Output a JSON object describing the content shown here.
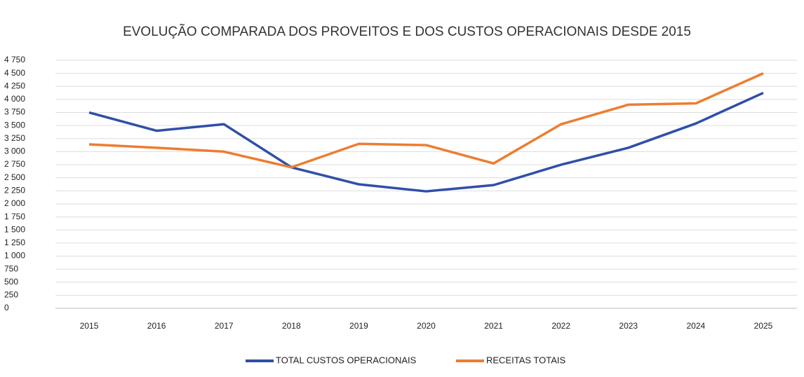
{
  "chart_data": {
    "type": "line",
    "title": "EVOLUÇÃO COMPARADA DOS PROVEITOS E DOS CUSTOS OPERACIONAIS DESDE 2015",
    "x": [
      2015,
      2016,
      2017,
      2018,
      2019,
      2020,
      2021,
      2022,
      2023,
      2024,
      2025
    ],
    "xlim": [
      2014.5,
      2025.5
    ],
    "xticks": [
      2015,
      2016,
      2017,
      2018,
      2019,
      2020,
      2021,
      2022,
      2023,
      2024,
      2025
    ],
    "series": [
      {
        "name": "TOTAL CUSTOS OPERACIONAIS",
        "color": "#2f4fa8",
        "values": [
          3750,
          3400,
          3525,
          2700,
          2375,
          2240,
          2360,
          2750,
          3075,
          3540,
          4125
        ]
      },
      {
        "name": "RECEITAS TOTAIS",
        "color": "#ed7d31",
        "values": [
          3140,
          3075,
          3000,
          2700,
          3150,
          3125,
          2775,
          3525,
          3900,
          3925,
          4500
        ]
      }
    ],
    "ylim": [
      0,
      4750
    ],
    "yticks": [
      0,
      250,
      500,
      750,
      {
        "value": 1000,
        "label": "1 000"
      },
      {
        "value": 1250,
        "label": "1 250"
      },
      {
        "value": 1500,
        "label": "1 500"
      },
      {
        "value": 1750,
        "label": "1 750"
      },
      {
        "value": 2000,
        "label": "2 000"
      },
      {
        "value": 2250,
        "label": "2 250"
      },
      {
        "value": 2500,
        "label": "2 500"
      },
      {
        "value": 2750,
        "label": "2 750"
      },
      {
        "value": 3000,
        "label": "3 000"
      },
      {
        "value": 3250,
        "label": "3 250"
      },
      {
        "value": 3500,
        "label": "3 500"
      },
      {
        "value": 3750,
        "label": "3 750"
      },
      {
        "value": 4000,
        "label": "4 000"
      },
      {
        "value": 4250,
        "label": "4 250"
      },
      {
        "value": 4500,
        "label": "4 500"
      },
      {
        "value": 4750,
        "label": "4 750"
      }
    ],
    "grid": true,
    "legend": "bottom"
  }
}
